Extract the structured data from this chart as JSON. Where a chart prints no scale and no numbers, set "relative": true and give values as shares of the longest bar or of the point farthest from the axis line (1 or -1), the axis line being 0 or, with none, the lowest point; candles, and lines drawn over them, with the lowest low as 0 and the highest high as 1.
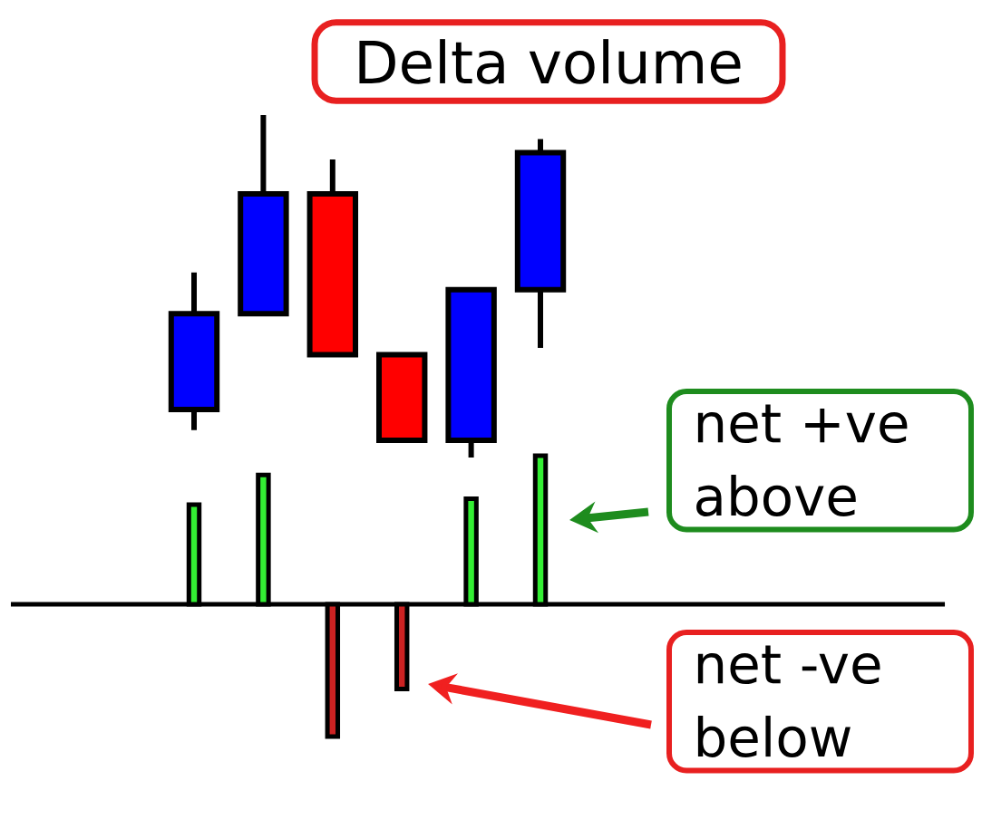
{
  "chart_data": [
    {
      "type": "candlestick",
      "title": "Delta volume",
      "relative": true,
      "categories": [
        null,
        null,
        null,
        null,
        null,
        null
      ],
      "ohlc": [
        [
          0.14,
          0.54,
          0.08,
          0.42
        ],
        [
          0.42,
          1,
          0.42,
          0.77
        ],
        [
          0.77,
          0.87,
          0.3,
          0.3
        ],
        [
          0.3,
          0.3,
          0.05,
          0.05
        ],
        [
          0.05,
          0.49,
          0,
          0.49
        ],
        [
          0.49,
          0.93,
          0.32,
          0.89
        ]
      ],
      "colors": [
        "#0000ff",
        "#0000ff",
        "#ff0000",
        "#ff0000",
        "#0000ff",
        "#0000ff"
      ]
    },
    {
      "type": "bar",
      "relative": true,
      "categories": [
        null,
        null,
        null,
        null,
        null,
        null
      ],
      "values": [
        0.67,
        0.87,
        -0.89,
        -0.57,
        0.71,
        1
      ],
      "colors": [
        "#33ee33",
        "#33ee33",
        "#cc2222",
        "#cc2222",
        "#33ee33",
        "#33ee33"
      ],
      "annotations": [
        "net +ve above",
        "net -ve below"
      ]
    }
  ]
}
